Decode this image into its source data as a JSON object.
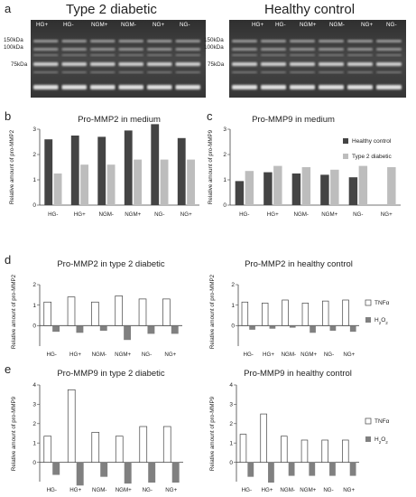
{
  "panel_letters": [
    "a",
    "b",
    "c",
    "d",
    "e"
  ],
  "gels": [
    {
      "title": "Type 2 diabetic",
      "lanes": [
        "HG+",
        "HG-",
        "NGM+",
        "NGM-",
        "NG+",
        "NG-"
      ],
      "kda": [
        "150kDa",
        "100kDa",
        "75kDa"
      ]
    },
    {
      "title": "Healthy control",
      "lanes": [
        "HG+",
        "HG-",
        "NGM+",
        "NGM-",
        "NG+",
        "NG-"
      ],
      "kda": [
        "150kDa",
        "100kDa",
        "75kDa"
      ]
    }
  ],
  "colors": {
    "healthy_control": "#444444",
    "type2_diabetic": "#bdbdbd",
    "tnf": "#ffffff",
    "h2o2": "#808080",
    "gel_bg": "#3c3c3c"
  },
  "chart_data": [
    {
      "panel": "b",
      "type": "bar",
      "title": "Pro-MMP2 in medium",
      "ylabel": "Relative amount of pro-MMP2",
      "categories": [
        "HG-",
        "HG+",
        "NGM-",
        "NGM+",
        "NG-",
        "NG+"
      ],
      "ylim": [
        0,
        3
      ],
      "yticks": [
        "0",
        "1",
        "2",
        "3"
      ],
      "series": [
        {
          "name": "Healthy control",
          "values": [
            2.6,
            2.75,
            2.7,
            2.95,
            3.2,
            2.65
          ]
        },
        {
          "name": "Type 2 diabetic",
          "values": [
            1.25,
            1.6,
            1.6,
            1.8,
            1.8,
            1.8
          ]
        }
      ]
    },
    {
      "panel": "c",
      "type": "bar",
      "title": "Pro-MMP9 in medium",
      "ylabel": "Relative amount of pro-MMP9",
      "categories": [
        "HG-",
        "HG+",
        "NGM-",
        "NGM+",
        "NG-",
        "NG+"
      ],
      "ylim": [
        0,
        3
      ],
      "yticks": [
        "0",
        "1",
        "2",
        "3"
      ],
      "legend": [
        "Healthy control",
        "Type 2 diabetic"
      ],
      "series": [
        {
          "name": "Healthy control",
          "values": [
            0.95,
            1.3,
            1.25,
            1.2,
            1.1,
            0
          ]
        },
        {
          "name": "Type 2 diabetic",
          "values": [
            1.35,
            1.55,
            1.5,
            1.4,
            1.55,
            1.5
          ]
        }
      ]
    },
    {
      "panel": "d",
      "type": "bar",
      "title": "Pro-MMP2 in type 2 diabetic",
      "ylabel": "Relative amount of pro-MMP2",
      "categories": [
        "HG-",
        "HG+",
        "NGM-",
        "NGM+",
        "NG-",
        "NG+"
      ],
      "ylim": [
        -1,
        2
      ],
      "yticks": [
        "0",
        "1",
        "2"
      ],
      "series": [
        {
          "name": "TNFα",
          "values": [
            1.15,
            1.4,
            1.15,
            1.45,
            1.3,
            1.3
          ]
        },
        {
          "name": "H2O2",
          "values": [
            0.3,
            0.35,
            0.25,
            0.7,
            0.4,
            0.4
          ]
        }
      ]
    },
    {
      "panel": "d",
      "type": "bar",
      "title": "Pro-MMP2 in healthy control",
      "ylabel": "Relative amount of pro-MMP2",
      "categories": [
        "HG-",
        "HG+",
        "NGM-",
        "NGM+",
        "NG-",
        "NG+"
      ],
      "ylim": [
        -1,
        2
      ],
      "yticks": [
        "0",
        "1",
        "2"
      ],
      "legend": [
        "TNFα",
        "H2O2"
      ],
      "series": [
        {
          "name": "TNFα",
          "values": [
            1.15,
            1.1,
            1.25,
            1.1,
            1.2,
            1.25
          ]
        },
        {
          "name": "H2O2",
          "values": [
            0.2,
            0.15,
            0.1,
            0.35,
            0.25,
            0.3
          ]
        }
      ]
    },
    {
      "panel": "e",
      "type": "bar",
      "title": "Pro-MMP9 in type 2 diabetic",
      "ylabel": "Relative amount of pro-MMP9",
      "categories": [
        "HG-",
        "HG+",
        "NGM-",
        "NGM+",
        "NG-",
        "NG+"
      ],
      "ylim": [
        -1,
        4
      ],
      "yticks": [
        "0",
        "1",
        "2",
        "3",
        "4"
      ],
      "series": [
        {
          "name": "TNFα",
          "values": [
            1.35,
            3.75,
            1.55,
            1.35,
            1.85,
            1.85
          ]
        },
        {
          "name": "H2O2",
          "values": [
            0.65,
            1.2,
            0.75,
            1.1,
            1.05,
            1.05
          ]
        }
      ]
    },
    {
      "panel": "e",
      "type": "bar",
      "title": "Pro-MMP9 in healthy control",
      "ylabel": "Relative amount of pro-MMP9",
      "categories": [
        "HG-",
        "HG+",
        "NGM-",
        "NGM+",
        "NG-",
        "NG+"
      ],
      "ylim": [
        -1,
        4
      ],
      "yticks": [
        "0",
        "1",
        "2",
        "3",
        "4"
      ],
      "legend": [
        "TNFα",
        "H2O2"
      ],
      "series": [
        {
          "name": "TNFα",
          "values": [
            1.45,
            2.5,
            1.35,
            1.15,
            1.15,
            1.15
          ]
        },
        {
          "name": "H2O2",
          "values": [
            0.75,
            1.05,
            0.7,
            0.7,
            0.7,
            0.7
          ]
        }
      ]
    }
  ]
}
